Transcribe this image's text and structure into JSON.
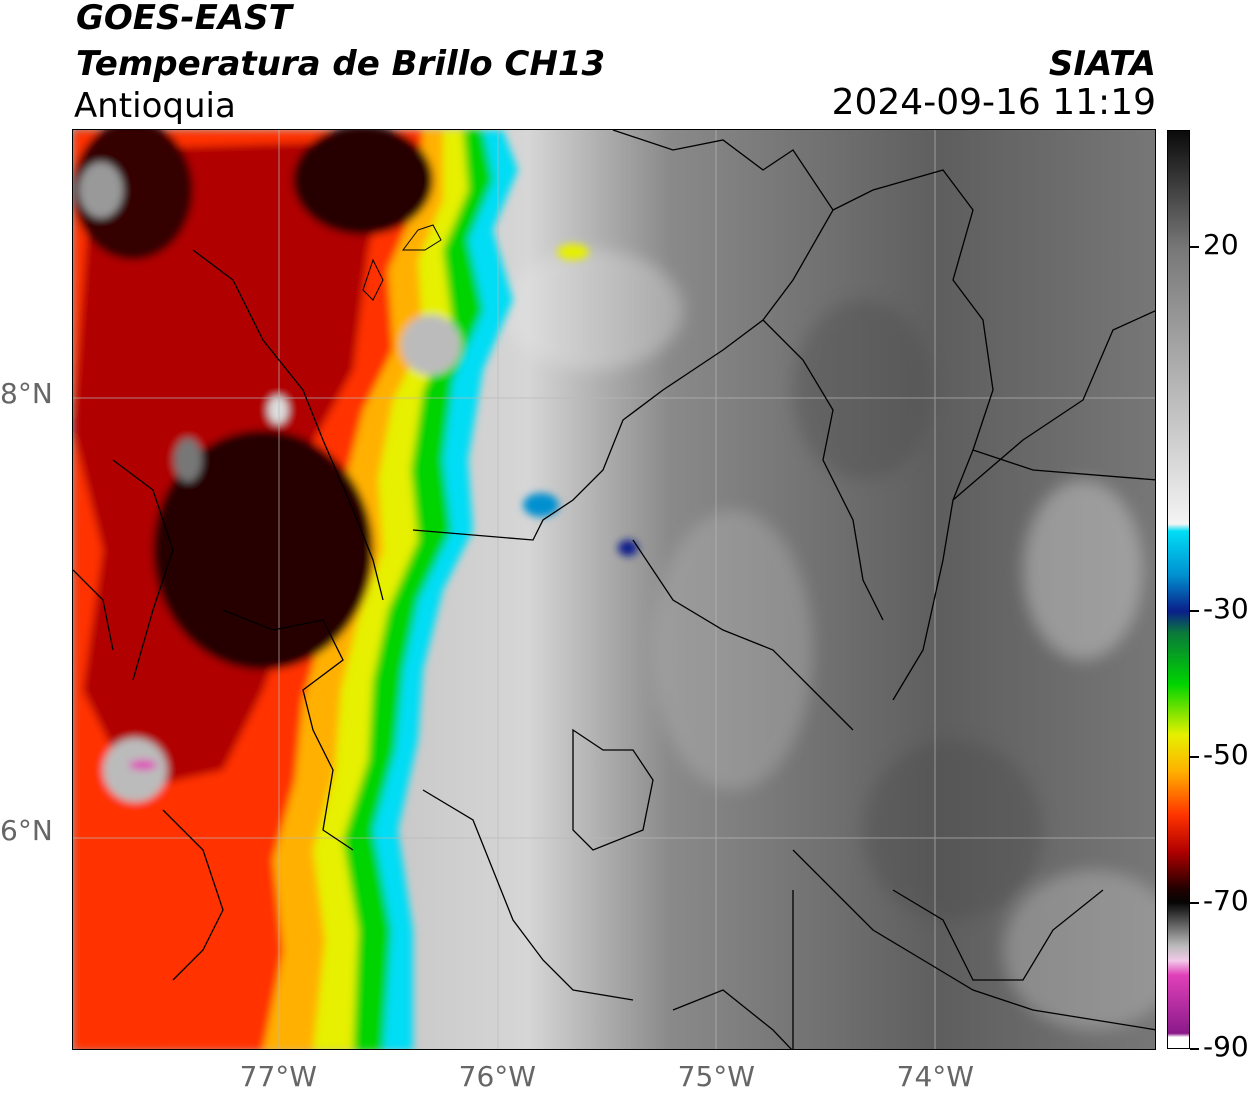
{
  "header": {
    "satellite": "GOES-EAST",
    "product": "Temperatura de Brillo CH13",
    "region": "Antioquia",
    "organization": "SIATA",
    "timestamp": "2024-09-16 11:19"
  },
  "axes": {
    "lon_labels": [
      {
        "value": -77,
        "text": "77°W"
      },
      {
        "value": -76,
        "text": "76°W"
      },
      {
        "value": -75,
        "text": "75°W"
      },
      {
        "value": -74,
        "text": "74°W"
      }
    ],
    "lat_labels": [
      {
        "value": 8,
        "text": "8°N"
      },
      {
        "value": 6,
        "text": "6°N"
      }
    ],
    "lon_range": [
      -77.93,
      -72.98
    ],
    "lat_range": [
      5.0,
      9.22
    ],
    "grid": true
  },
  "colorbar": {
    "units": "°C",
    "range": [
      -90,
      36
    ],
    "ticks": [
      {
        "value": 20,
        "text": "20"
      },
      {
        "value": -30,
        "text": "-30"
      },
      {
        "value": -50,
        "text": "-50"
      },
      {
        "value": -70,
        "text": "-70"
      },
      {
        "value": -90,
        "text": "-90"
      }
    ],
    "stops": [
      {
        "t": 36,
        "color": "#0a0a0a"
      },
      {
        "t": 20,
        "color": "#777777"
      },
      {
        "t": -18,
        "color": "#f4f4f4"
      },
      {
        "t": -19,
        "color": "#00ddf5"
      },
      {
        "t": -25,
        "color": "#0090d0"
      },
      {
        "t": -30,
        "color": "#0a1f8a"
      },
      {
        "t": -33,
        "color": "#0a7a3a"
      },
      {
        "t": -40,
        "color": "#00d400"
      },
      {
        "t": -47,
        "color": "#e6f000"
      },
      {
        "t": -52,
        "color": "#ffb000"
      },
      {
        "t": -58,
        "color": "#ff3300"
      },
      {
        "t": -63,
        "color": "#b00000"
      },
      {
        "t": -68,
        "color": "#250000"
      },
      {
        "t": -70,
        "color": "#050505"
      },
      {
        "t": -76,
        "color": "#bbbbbb"
      },
      {
        "t": -78,
        "color": "#f2c8e8"
      },
      {
        "t": -80,
        "color": "#e040b8"
      },
      {
        "t": -88,
        "color": "#8a1a8a"
      },
      {
        "t": -88.5,
        "color": "#ffffff"
      },
      {
        "t": -90,
        "color": "#ffffff"
      }
    ]
  },
  "style": {
    "cold_cloud_colors": [
      "#b00000",
      "#ff3300",
      "#ffb000",
      "#e6f000",
      "#00d400",
      "#0090d0"
    ],
    "clear_sky_color": "#6a6a6a"
  }
}
